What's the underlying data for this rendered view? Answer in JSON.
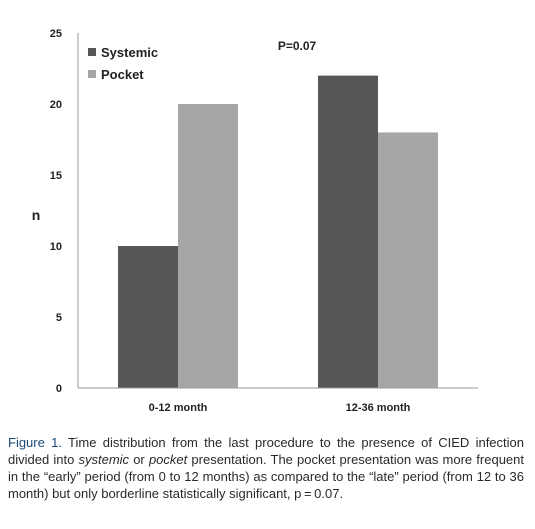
{
  "chart_data": {
    "type": "bar",
    "categories": [
      "0-12 month",
      "12-36 month"
    ],
    "series": [
      {
        "name": "Systemic",
        "values": [
          10,
          22
        ],
        "color": "#575757"
      },
      {
        "name": "Pocket",
        "values": [
          20,
          18
        ],
        "color": "#a6a6a6"
      }
    ],
    "ylabel": "n",
    "ylim": [
      0,
      25
    ],
    "yticks": [
      0,
      5,
      10,
      15,
      20,
      25
    ],
    "grid": false,
    "legend_position": "top-left",
    "annotation": "P=0.07"
  },
  "caption": {
    "lead": "Figure 1.",
    "t1": " Time distribution from the last procedure to the presence of CIED infection divided into ",
    "i1": "systemic",
    "t2": " or ",
    "i2": "pocket",
    "t3": " presentation. The pocket presentation was more frequent in the “early” period (from 0 to 12 months) as compared to the “late” period (from 12 to 36 month) but only borderline statistically significant, p = 0.07."
  }
}
